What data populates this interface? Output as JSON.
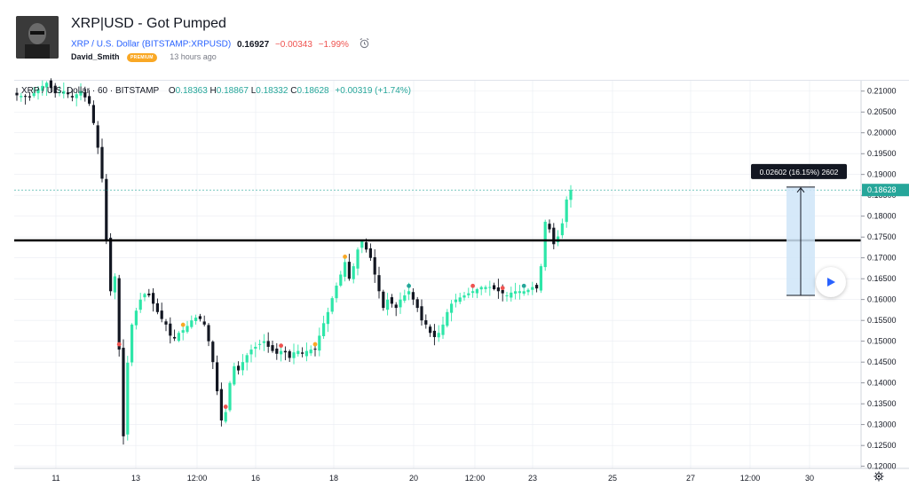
{
  "header": {
    "title": "XRP|USD - Got Pumped",
    "symbol_label": "XRP / U.S. Dollar (BITSTAMP:XRPUSD)",
    "price": "0.16927",
    "change": "−0.00343",
    "change_pct": "−1.99%",
    "author": "David_Smith",
    "badge": "PREMIUM",
    "time_ago": "13 hours ago"
  },
  "legend": {
    "symbol": "XRP / U.S. Dollar · 60 · BITSTAMP",
    "open": "0.18363",
    "high": "0.18867",
    "low": "0.18332",
    "close": "0.18628",
    "change": "+0.00319 (+1.74%)"
  },
  "colors": {
    "up": "#26a69a",
    "up_bright": "#2ee6a8",
    "down": "#131722",
    "price_label_bg": "#26a69a",
    "measure_fill": "#cfe5f8",
    "grid": "#e9ecf2"
  },
  "measure_tooltip": "0.02602 (16.15%) 2602",
  "current_price_label": "0.18628",
  "chart_data": {
    "type": "candlestick",
    "timeframe": "60",
    "y_ticks": [
      "0.21000",
      "0.20500",
      "0.20000",
      "0.19500",
      "0.19000",
      "0.18500",
      "0.18000",
      "0.17500",
      "0.17000",
      "0.16500",
      "0.16000",
      "0.15500",
      "0.15000",
      "0.14500",
      "0.14000",
      "0.13500",
      "0.13000",
      "0.12500",
      "0.12000"
    ],
    "x_ticks": [
      "11",
      "13",
      "12:00",
      "16",
      "18",
      "20",
      "12:00",
      "23",
      "25",
      "27",
      "12:00",
      "30"
    ],
    "ylim": [
      0.1195,
      0.2125
    ],
    "horizontal_line": 0.1742,
    "current_price": 0.18628,
    "measure": {
      "from": 0.161,
      "to": 0.187,
      "label": "0.02602 (16.15%) 2602"
    },
    "path": [
      [
        0,
        0.209
      ],
      [
        3,
        0.2085
      ],
      [
        5,
        0.2105
      ],
      [
        7,
        0.212
      ],
      [
        9,
        0.2095
      ],
      [
        11,
        0.21
      ],
      [
        13,
        0.2085
      ],
      [
        15,
        0.21
      ],
      [
        17,
        0.207
      ],
      [
        18.5,
        0.2
      ],
      [
        19.2,
        0.195
      ],
      [
        20,
        0.189
      ],
      [
        20.6,
        0.184
      ],
      [
        21.1,
        0.172
      ],
      [
        21.6,
        0.158
      ],
      [
        22.5,
        0.167
      ],
      [
        23.2,
        0.165
      ],
      [
        24,
        0.148
      ],
      [
        24.6,
        0.132
      ],
      [
        25.1,
        0.126
      ],
      [
        25.8,
        0.142
      ],
      [
        26.5,
        0.152
      ],
      [
        27.5,
        0.156
      ],
      [
        29,
        0.16
      ],
      [
        30.5,
        0.162
      ],
      [
        32,
        0.159
      ],
      [
        33.5,
        0.156
      ],
      [
        35,
        0.154
      ],
      [
        36.5,
        0.15
      ],
      [
        38,
        0.152
      ],
      [
        39.5,
        0.153
      ],
      [
        41,
        0.155
      ],
      [
        42.5,
        0.156
      ],
      [
        44,
        0.154
      ],
      [
        45,
        0.15
      ],
      [
        46,
        0.145
      ],
      [
        47,
        0.138
      ],
      [
        48,
        0.131
      ],
      [
        49,
        0.133
      ],
      [
        50,
        0.14
      ],
      [
        51,
        0.144
      ],
      [
        52,
        0.143
      ],
      [
        53.5,
        0.146
      ],
      [
        55,
        0.148
      ],
      [
        56.5,
        0.149
      ],
      [
        58,
        0.15
      ],
      [
        59.5,
        0.148
      ],
      [
        61,
        0.147
      ],
      [
        62.5,
        0.148
      ],
      [
        64,
        0.146
      ],
      [
        65.5,
        0.148
      ],
      [
        67,
        0.147
      ],
      [
        68.5,
        0.148
      ],
      [
        70,
        0.148
      ],
      [
        71.5,
        0.153
      ],
      [
        73,
        0.157
      ],
      [
        74.5,
        0.162
      ],
      [
        76,
        0.166
      ],
      [
        77,
        0.169
      ],
      [
        78,
        0.165
      ],
      [
        79,
        0.168
      ],
      [
        80,
        0.172
      ],
      [
        81,
        0.174
      ],
      [
        82,
        0.172
      ],
      [
        83,
        0.17
      ],
      [
        84,
        0.166
      ],
      [
        85,
        0.162
      ],
      [
        86,
        0.158
      ],
      [
        87,
        0.16
      ],
      [
        88,
        0.159
      ],
      [
        89,
        0.158
      ],
      [
        90,
        0.16
      ],
      [
        91,
        0.161
      ],
      [
        92,
        0.162
      ],
      [
        93,
        0.16
      ],
      [
        94,
        0.158
      ],
      [
        95,
        0.155
      ],
      [
        96,
        0.154
      ],
      [
        97,
        0.152
      ],
      [
        98,
        0.151
      ],
      [
        99,
        0.152
      ],
      [
        100,
        0.154
      ],
      [
        101,
        0.157
      ],
      [
        102,
        0.159
      ],
      [
        103,
        0.16
      ],
      [
        105,
        0.161
      ],
      [
        107,
        0.162
      ],
      [
        109,
        0.163
      ],
      [
        111,
        0.163
      ],
      [
        113,
        0.162
      ],
      [
        115,
        0.161
      ],
      [
        116.5,
        0.162
      ],
      [
        118,
        0.162
      ],
      [
        119.5,
        0.162
      ],
      [
        121,
        0.163
      ],
      [
        122.5,
        0.1625
      ],
      [
        123,
        0.168
      ],
      [
        123.6,
        0.176
      ],
      [
        124.2,
        0.18
      ],
      [
        124.8,
        0.178
      ],
      [
        125.5,
        0.174
      ],
      [
        126.2,
        0.173
      ],
      [
        126.9,
        0.175
      ],
      [
        127.6,
        0.176
      ],
      [
        128.3,
        0.18
      ],
      [
        129.0,
        0.184
      ],
      [
        129.6,
        0.1863
      ]
    ],
    "markers": [
      {
        "i": 24,
        "color": "#ef5350"
      },
      {
        "i": 39,
        "color": "#f9a825"
      },
      {
        "i": 49,
        "color": "#ef5350"
      },
      {
        "i": 62,
        "color": "#ef5350"
      },
      {
        "i": 70,
        "color": "#f9a825"
      },
      {
        "i": 77,
        "color": "#f9a825"
      },
      {
        "i": 92,
        "color": "#26a69a"
      },
      {
        "i": 107,
        "color": "#ef5350"
      },
      {
        "i": 114,
        "color": "#ef5350"
      },
      {
        "i": 119,
        "color": "#26a69a"
      }
    ]
  }
}
